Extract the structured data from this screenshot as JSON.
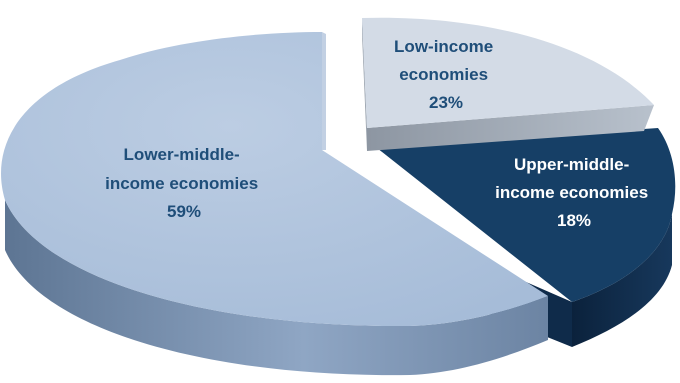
{
  "chart_data": {
    "type": "pie",
    "style": "3d-exploded",
    "title": "",
    "slices": [
      {
        "label": "Low-income economies",
        "value": 23,
        "value_label": "23%",
        "color": "#d3dbe6",
        "text_color": "#1f4e79"
      },
      {
        "label": "Upper-middle-income economies",
        "value": 18,
        "value_label": "18%",
        "color": "#163f66",
        "text_color": "#ffffff"
      },
      {
        "label": "Lower-middle-income economies",
        "value": 59,
        "value_label": "59%",
        "color": "#a6bcd8",
        "text_color": "#1f4e79"
      }
    ],
    "legend": "none",
    "data_labels": "on-slice"
  }
}
